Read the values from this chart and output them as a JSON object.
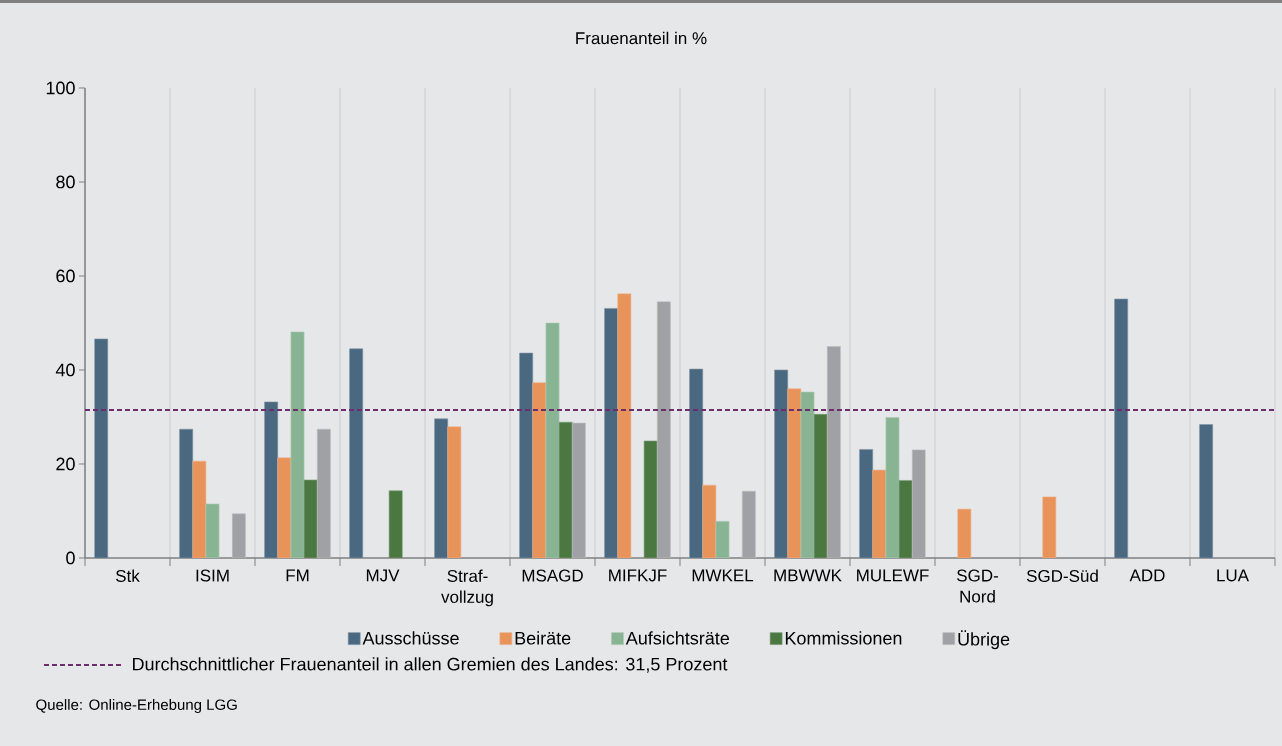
{
  "chart_data": {
    "type": "bar",
    "title": "Frauenanteil in %",
    "categories": [
      "Stk",
      "ISIM",
      "FM",
      "MJV",
      "Straf-vollzug",
      "MSAGD",
      "MIFKJF",
      "MWKEL",
      "MBWWK",
      "MULEWF",
      "SGD-Nord",
      "SGD-Süd",
      "ADD",
      "LUA"
    ],
    "series": [
      {
        "name": "Ausschüsse",
        "color": "#4a6880",
        "values": [
          46.6,
          27.4,
          33.2,
          44.5,
          29.6,
          43.6,
          53.1,
          40.2,
          40.0,
          23.1,
          null,
          null,
          55.1,
          28.4
        ]
      },
      {
        "name": "Beiräte",
        "color": "#e8935a",
        "values": [
          null,
          20.6,
          21.3,
          null,
          27.9,
          37.3,
          56.2,
          15.5,
          36.0,
          18.7,
          10.4,
          13.0,
          null,
          null
        ]
      },
      {
        "name": "Aufsichtsräte",
        "color": "#88b494",
        "values": [
          null,
          11.5,
          48.1,
          null,
          null,
          50.0,
          null,
          7.8,
          35.3,
          29.9,
          null,
          null,
          null,
          null
        ]
      },
      {
        "name": "Kommissionen",
        "color": "#4b7841",
        "values": [
          null,
          null,
          16.6,
          14.3,
          null,
          28.9,
          24.9,
          null,
          30.6,
          16.5,
          null,
          null,
          null,
          null
        ]
      },
      {
        "name": "Übrige",
        "color": "#a0a1a5",
        "values": [
          null,
          9.4,
          27.4,
          null,
          null,
          28.7,
          54.5,
          14.2,
          45.0,
          23.0,
          null,
          null,
          null,
          null
        ]
      }
    ],
    "ylim": [
      0,
      100
    ],
    "yticks": [
      0,
      20,
      40,
      60,
      80,
      100
    ],
    "grid": "x",
    "legend": "bottom",
    "ref_lines": [
      {
        "axis": "y",
        "value": 31.5,
        "label": "Durchschnittlicher Frauenanteil in allen Gremien des Landes: 31,5 Prozent",
        "color": "#6b2d6b",
        "line_style": "dashed"
      }
    ],
    "annotations": [
      "Quelle: Online-Erhebung LGG"
    ]
  }
}
